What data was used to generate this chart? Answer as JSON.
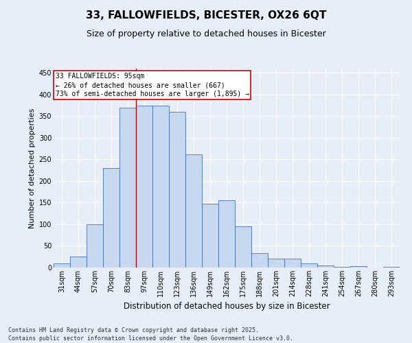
{
  "title_line1": "33, FALLOWFIELDS, BICESTER, OX26 6QT",
  "title_line2": "Size of property relative to detached houses in Bicester",
  "xlabel": "Distribution of detached houses by size in Bicester",
  "ylabel": "Number of detached properties",
  "categories": [
    "31sqm",
    "44sqm",
    "57sqm",
    "70sqm",
    "83sqm",
    "97sqm",
    "110sqm",
    "123sqm",
    "136sqm",
    "149sqm",
    "162sqm",
    "175sqm",
    "188sqm",
    "201sqm",
    "214sqm",
    "228sqm",
    "241sqm",
    "254sqm",
    "267sqm",
    "280sqm",
    "293sqm"
  ],
  "values": [
    10,
    25,
    100,
    230,
    370,
    375,
    375,
    360,
    262,
    148,
    155,
    95,
    33,
    20,
    20,
    10,
    5,
    2,
    3,
    0,
    2
  ],
  "bar_color": "#c5d8f0",
  "bar_edge_color": "#4472c4",
  "annotation_text": "33 FALLOWFIELDS: 95sqm\n← 26% of detached houses are smaller (667)\n73% of semi-detached houses are larger (1,895) →",
  "annotation_box_color": "#ffffff",
  "annotation_box_edge_color": "#cc0000",
  "vline_color": "#cc0000",
  "vline_x": 5.0,
  "ylim": [
    0,
    460
  ],
  "yticks": [
    0,
    50,
    100,
    150,
    200,
    250,
    300,
    350,
    400,
    450
  ],
  "background_color": "#e8eef8",
  "plot_bg_color": "#e8eef8",
  "footer_line1": "Contains HM Land Registry data © Crown copyright and database right 2025.",
  "footer_line2": "Contains public sector information licensed under the Open Government Licence v3.0.",
  "title_fontsize": 11,
  "subtitle_fontsize": 9,
  "xlabel_fontsize": 8.5,
  "ylabel_fontsize": 8,
  "tick_fontsize": 7,
  "annotation_fontsize": 7,
  "footer_fontsize": 6
}
